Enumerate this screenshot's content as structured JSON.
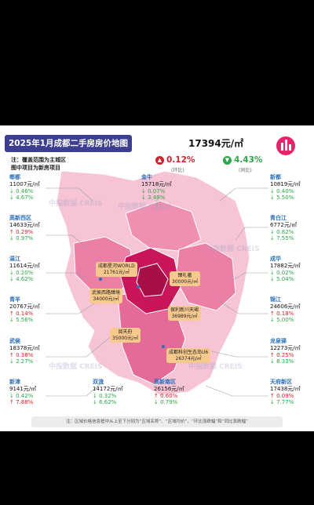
{
  "title": "2025年1月成都二手房房价地图",
  "notes": [
    "注：覆盖范围为主城区",
    "图中项目为新房项目"
  ],
  "average": {
    "price": "17394元/㎡",
    "mom": "0.12%",
    "mom_label": "(环比)",
    "yoy": "4.43%",
    "yoy_label": "(同比)",
    "mom_color": "#d61f2c",
    "yoy_color": "#2aa84a"
  },
  "districts": [
    {
      "name": "郫都",
      "price": "11007元/㎡",
      "mom": "↓ 0.46%",
      "yoy": "↓ 4.67%"
    },
    {
      "name": "高新西区",
      "price": "14633元/㎡",
      "mom": "↑ 0.29%",
      "yoy": "↓ 0.97%"
    },
    {
      "name": "温江",
      "price": "11614元/㎡",
      "mom": "↓ 0.20%",
      "yoy": "↓ 4.62%"
    },
    {
      "name": "青羊",
      "price": "20767元/㎡",
      "mom": "↑ 0.14%",
      "yoy": "↓ 5.56%"
    },
    {
      "name": "武侯",
      "price": "18378元/㎡",
      "mom": "↑ 0.38%",
      "yoy": "↓ 2.27%"
    },
    {
      "name": "新津",
      "price": "9141元/㎡",
      "mom": "↓ 0.42%",
      "yoy": "↑ 7.88%"
    },
    {
      "name": "金牛",
      "price": "15718元/㎡",
      "mom": "↓ 0.07%",
      "yoy": "↓ 3.49%"
    },
    {
      "name": "新都",
      "price": "10819元/㎡",
      "mom": "↓ 0.40%",
      "yoy": "↓ 5.50%"
    },
    {
      "name": "青白江",
      "price": "6772元/㎡",
      "mom": "↓ 0.82%",
      "yoy": "↓ 7.55%"
    },
    {
      "name": "成华",
      "price": "17882元/㎡",
      "mom": "↓ 0.02%",
      "yoy": "↓ 5.04%"
    },
    {
      "name": "锦江",
      "price": "24606元/㎡",
      "mom": "↑ 0.18%",
      "yoy": "↓ 5.00%"
    },
    {
      "name": "龙泉驿",
      "price": "12273元/㎡",
      "mom": "↑ 0.25%",
      "yoy": "↓ 8.33%"
    },
    {
      "name": "天府新区",
      "price": "17438元/㎡",
      "mom": "↑ 0.09%",
      "yoy": "↓ 7.77%"
    },
    {
      "name": "双流",
      "price": "14172元/㎡",
      "mom": "↓ 0.32%",
      "yoy": "↓ 6.62%"
    },
    {
      "name": "高新南区",
      "price": "26156元/㎡",
      "mom": "↑ 0.60%",
      "yoy": "↓ 0.79%"
    }
  ],
  "projects": [
    {
      "name": "成都星河WORLD",
      "price": "21761元/㎡"
    },
    {
      "name": "臻礼著",
      "price": "30000元/㎡"
    },
    {
      "name": "武侯西路臻境",
      "price": "34000元/㎡"
    },
    {
      "name": "保利新川天珺",
      "price": "36989元/㎡"
    },
    {
      "name": "阅天府",
      "price": "35000元/㎡"
    },
    {
      "name": "成都科创生态岛U6",
      "price": "26374元/㎡"
    }
  ],
  "watermark": "中指数据 CREIS",
  "footer": "注：区域价格信息框中从上至下分别为“区域名称”、“区域均价”、“环比涨跌幅”和“同比涨跌幅”",
  "colors": {
    "title_bg": "#3c3f8f",
    "map_light": "#f6c4d4",
    "map_mid": "#ec7fa6",
    "map_dark": "#c9165a",
    "name_blue": "#2a6fb8"
  }
}
